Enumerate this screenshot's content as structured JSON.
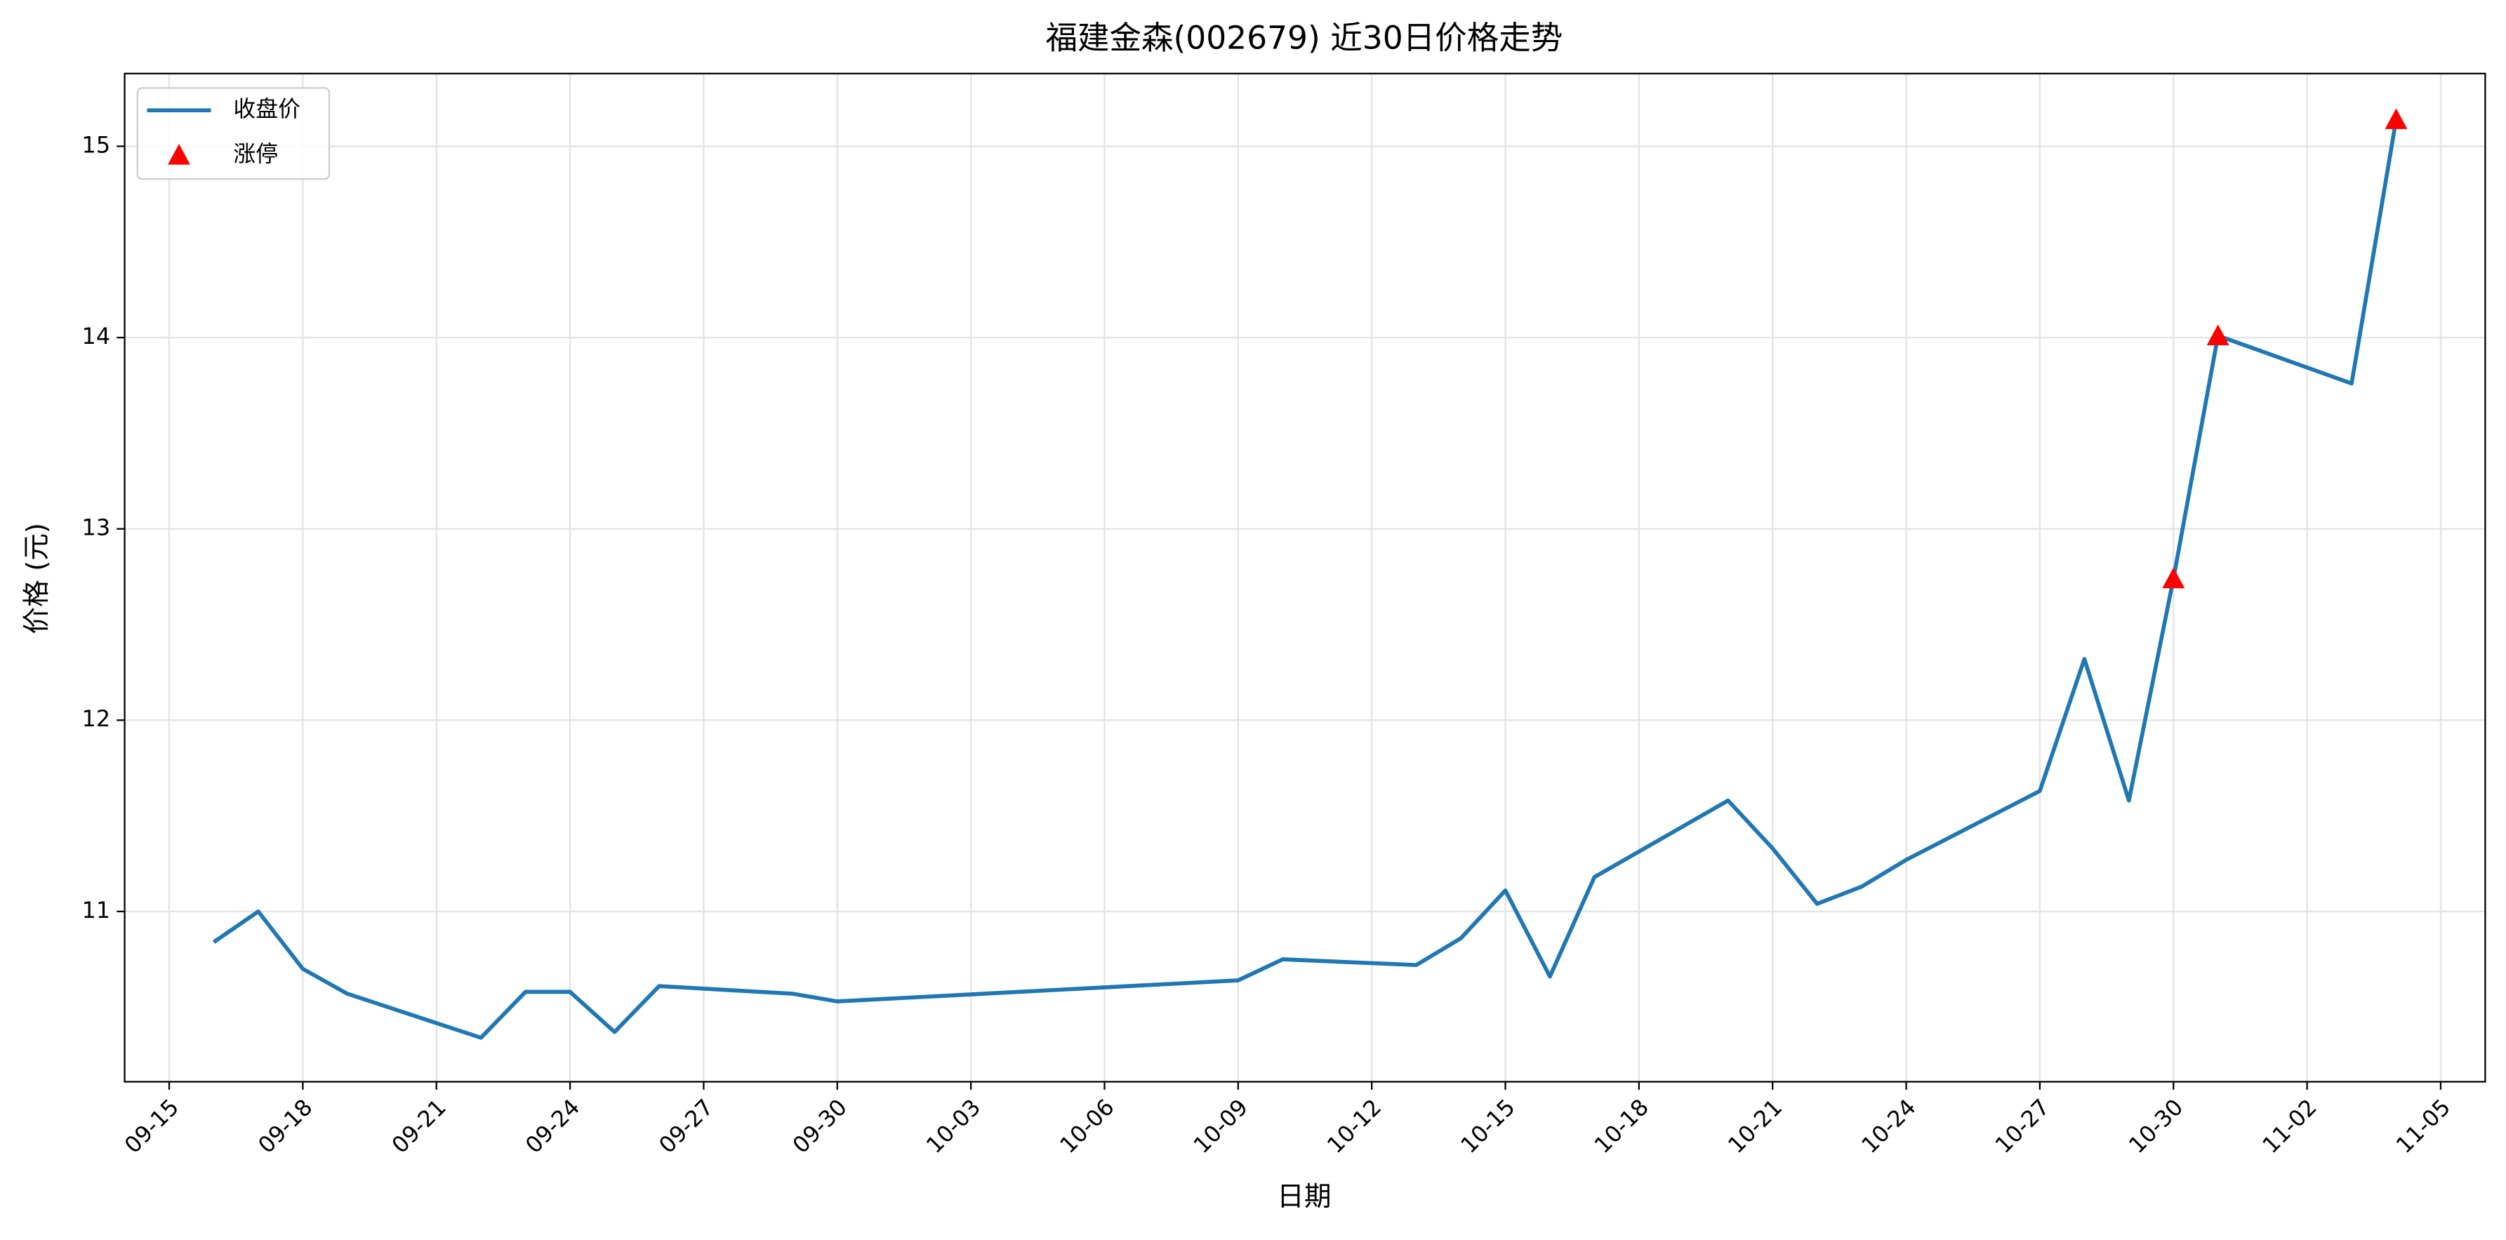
{
  "chart_data": {
    "type": "line",
    "title": "福建金森(002679) 近30日价格走势",
    "xlabel": "日期",
    "ylabel": "价格 (元)",
    "x": [
      "09-16",
      "09-17",
      "09-18",
      "09-19",
      "09-22",
      "09-23",
      "09-24",
      "09-25",
      "09-26",
      "09-29",
      "09-30",
      "10-09",
      "10-10",
      "10-13",
      "10-14",
      "10-15",
      "10-16",
      "10-17",
      "10-20",
      "10-21",
      "10-22",
      "10-23",
      "10-24",
      "10-27",
      "10-28",
      "10-29",
      "10-30",
      "10-31",
      "11-03",
      "11-04"
    ],
    "series": [
      {
        "name": "收盘价",
        "color": "#1f77b4",
        "type": "line",
        "values": [
          10.84,
          11.0,
          10.7,
          10.57,
          10.34,
          10.58,
          10.58,
          10.37,
          10.61,
          10.57,
          10.53,
          10.64,
          10.75,
          10.72,
          10.86,
          11.11,
          10.66,
          11.18,
          11.58,
          11.33,
          11.04,
          11.13,
          11.27,
          11.63,
          12.32,
          11.58,
          12.74,
          14.01,
          13.76,
          15.14
        ]
      },
      {
        "name": "涨停",
        "color": "#ff0000",
        "type": "scatter",
        "values": [
          null,
          null,
          null,
          null,
          null,
          null,
          null,
          null,
          null,
          null,
          null,
          null,
          null,
          null,
          null,
          null,
          null,
          null,
          null,
          null,
          null,
          null,
          null,
          null,
          null,
          null,
          12.74,
          14.01,
          null,
          15.14
        ]
      }
    ],
    "xlim": [
      "09-14",
      "11-06"
    ],
    "xticks": [
      "09-15",
      "09-18",
      "09-21",
      "09-24",
      "09-27",
      "09-30",
      "10-03",
      "10-06",
      "10-09",
      "10-12",
      "10-15",
      "10-18",
      "10-21",
      "10-24",
      "10-27",
      "10-30",
      "11-02",
      "11-05"
    ],
    "ylim": [
      10.11,
      15.38
    ],
    "yticks": [
      11,
      12,
      13,
      14,
      15
    ],
    "grid": true,
    "legend": "upper left"
  }
}
